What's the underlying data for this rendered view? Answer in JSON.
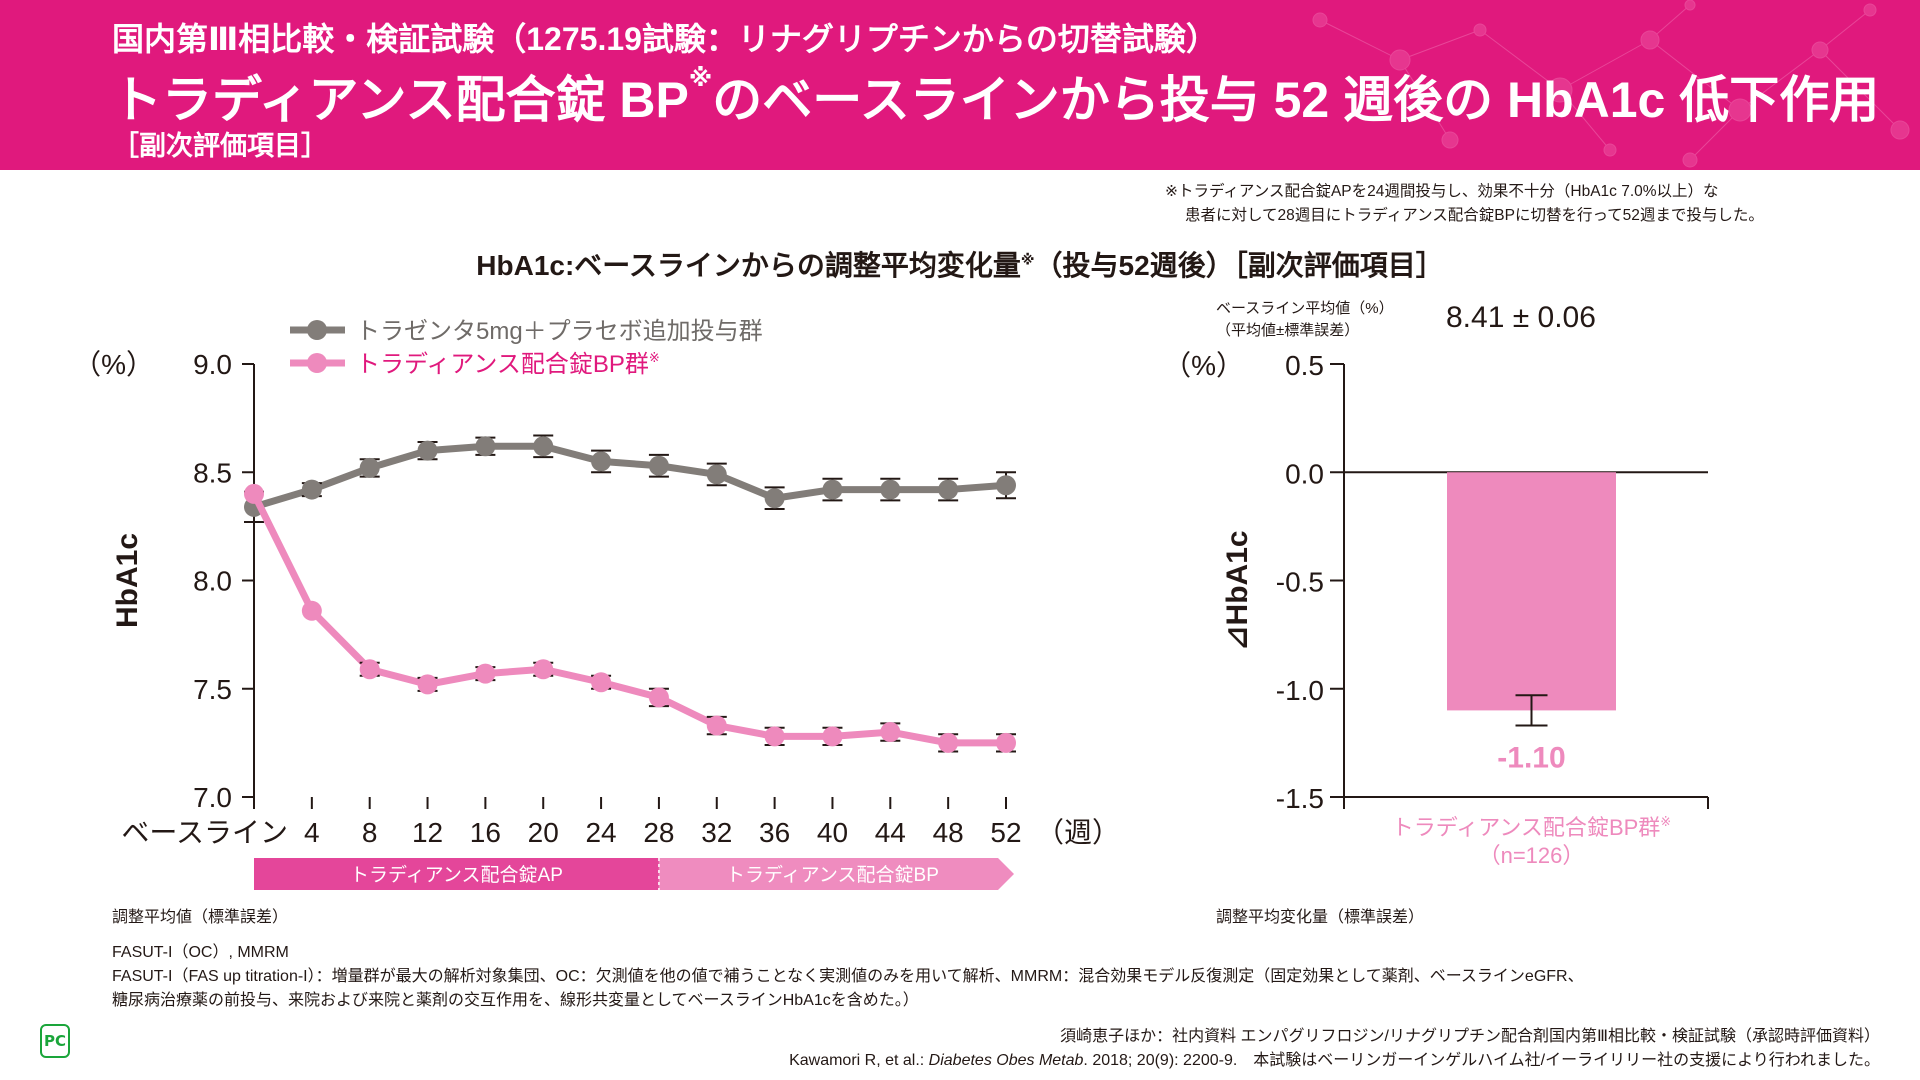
{
  "header": {
    "subtitle": "国内第Ⅲ相比較・検証試験（1275.19試験：リナグリプチンからの切替試験）",
    "title_pre": "トラディアンス配合錠 BP",
    "title_mark": "※",
    "title_post": "のベースラインから投与 52 週後の HbA1c 低下作用",
    "tag": "［副次評価項目］"
  },
  "note": {
    "line1": "※トラディアンス配合錠APを24週間投与し、効果不十分（HbA1c 7.0%以上）な",
    "line2": "患者に対して28週目にトラディアンス配合錠BPに切替を行って52週まで投与した。"
  },
  "chart_heading": {
    "pre": "HbA1c:ベースラインからの調整平均変化量",
    "mark": "※",
    "post": "（投与52週後）［副次評価項目］"
  },
  "colors": {
    "brand": "#e0197d",
    "gray_series": "#827d79",
    "pink_series": "#ee8abd",
    "ap_band": "#e4469a",
    "bp_band": "#ef8cbf",
    "bar_label": "#ee8abd"
  },
  "chart_data": [
    {
      "type": "line",
      "title": "",
      "xlabel": "（週）",
      "ylabel": "HbA1c",
      "yunit": "（%）",
      "ylim": [
        7.0,
        9.0
      ],
      "yticks": [
        "9.0",
        "8.5",
        "8.0",
        "7.5",
        "7.0"
      ],
      "ytick_values": [
        9.0,
        8.5,
        8.0,
        7.5,
        7.0
      ],
      "categories": [
        "ベースライン",
        "4",
        "8",
        "12",
        "16",
        "20",
        "24",
        "28",
        "32",
        "36",
        "40",
        "44",
        "48",
        "52"
      ],
      "x": [
        0,
        4,
        8,
        12,
        16,
        20,
        24,
        28,
        32,
        36,
        40,
        44,
        48,
        52
      ],
      "series": [
        {
          "name": "トラゼンタ5mg＋プラセボ追加投与群",
          "color": "#827d79",
          "values": [
            8.34,
            8.42,
            8.52,
            8.6,
            8.62,
            8.62,
            8.55,
            8.53,
            8.49,
            8.38,
            8.42,
            8.42,
            8.42,
            8.44
          ],
          "se": [
            0.07,
            0.03,
            0.04,
            0.04,
            0.04,
            0.05,
            0.05,
            0.05,
            0.05,
            0.05,
            0.05,
            0.05,
            0.05,
            0.06
          ]
        },
        {
          "name": "トラディアンス配合錠BP群",
          "name_mark": "※",
          "color": "#ee8abd",
          "values": [
            8.4,
            7.86,
            7.59,
            7.52,
            7.57,
            7.59,
            7.53,
            7.46,
            7.33,
            7.28,
            7.28,
            7.3,
            7.25,
            7.25
          ],
          "se": [
            0.0,
            0.0,
            0.03,
            0.03,
            0.03,
            0.03,
            0.03,
            0.04,
            0.04,
            0.04,
            0.04,
            0.04,
            0.04,
            0.04
          ]
        }
      ],
      "legend": "top-left",
      "phases": [
        {
          "label": "トラディアンス配合錠AP",
          "from": 0,
          "to": 28
        },
        {
          "label": "トラディアンス配合錠BP",
          "from": 28,
          "to": 52
        }
      ],
      "caption": "調整平均値（標準誤差）"
    },
    {
      "type": "bar",
      "ylabel": "⊿HbA1c",
      "yunit": "（%）",
      "ylim": [
        -1.5,
        0.5
      ],
      "yticks": [
        "0.5",
        "0.0",
        "-0.5",
        "-1.0",
        "-1.5"
      ],
      "ytick_values": [
        0.5,
        0.0,
        -0.5,
        -1.0,
        -1.5
      ],
      "categories": [
        "トラディアンス配合錠BP群"
      ],
      "category_mark": "※",
      "category_n": "（n=126）",
      "values": [
        -1.1
      ],
      "se": [
        0.07
      ],
      "data_labels": [
        "-1.10"
      ],
      "baseline_label_1": "ベースライン平均値（%）",
      "baseline_label_2": "（平均値±標準誤差）",
      "baseline_value": "8.41 ± 0.06",
      "caption": "調整平均変化量（標準誤差）"
    }
  ],
  "footnotes": {
    "line1": "FASUT-I（OC）, MMRM",
    "line2": "FASUT-I（FAS up titration-I）：増量群が最大の解析対象集団、OC：欠測値を他の値で補うことなく実測値のみを用いて解析、MMRM：混合効果モデル反復測定（固定効果として薬剤、ベースラインeGFR、",
    "line3": "糖尿病治療薬の前投与、来院および来院と薬剤の交互作用を、線形共変量としてベースラインHbA1cを含めた。）"
  },
  "references": {
    "line1": "須崎恵子ほか：社内資料 エンパグリフロジン/リナグリプチン配合剤国内第Ⅲ相比較・検証試験（承認時評価資料）",
    "line2_pre": "Kawamori R, et al.: ",
    "line2_journal": "Diabetes Obes Metab",
    "line2_post": ". 2018; 20(9): 2200-9.　本試験はベーリンガーインゲルハイム社/イーライリリー社の支援により行われました。"
  },
  "logo": "PC"
}
